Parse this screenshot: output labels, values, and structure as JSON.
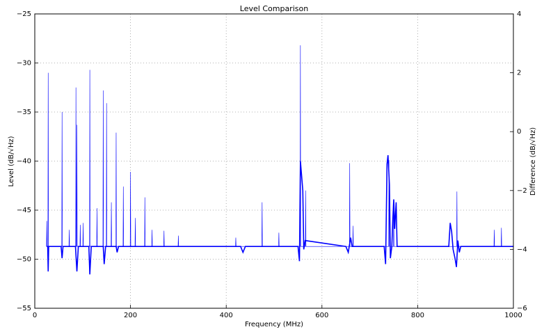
{
  "chart_data": {
    "type": "line",
    "title": "Level Comparison",
    "x_label": "Frequency (MHz)",
    "y_label": "Level (dB/√Hz)",
    "y2_label": "Difference (dB/√Hz)",
    "xlim": [
      0,
      1000
    ],
    "xticks": [
      0,
      200,
      400,
      600,
      800,
      1000
    ],
    "ylim": [
      -55,
      -25
    ],
    "yticks": [
      {
        "value": -55,
        "label": "−55"
      },
      {
        "value": -50,
        "label": "−50"
      },
      {
        "value": -45,
        "label": "−45"
      },
      {
        "value": -40,
        "label": "−40"
      },
      {
        "value": -35,
        "label": "−35"
      },
      {
        "value": -30,
        "label": "−30"
      },
      {
        "value": -25,
        "label": "−25"
      }
    ],
    "y2lim": [
      -6,
      4
    ],
    "y2ticks": [
      {
        "value": -6,
        "label": "−6"
      },
      {
        "value": -4,
        "label": "−4"
      },
      {
        "value": -2,
        "label": "−2"
      },
      0,
      2,
      4
    ],
    "grid": true,
    "series": [
      {
        "color": "#0000ff",
        "x": [
          24,
          24.4,
          25,
          25.6,
          27.4,
          28,
          28.6,
          56.4,
          57,
          57.6,
          71.4,
          72,
          72.6,
          85.4,
          86,
          86.6,
          87.4,
          88,
          88.6,
          94.4,
          95,
          95.6,
          100.4,
          101,
          101.6,
          114.4,
          115,
          115.6,
          129.4,
          130,
          130.6,
          142.4,
          143,
          143.6,
          149.4,
          150,
          150.6,
          159.4,
          160,
          160.6,
          169.4,
          170,
          170.6,
          184.4,
          185,
          185.6,
          199.4,
          200,
          200.6,
          209.4,
          210,
          210.6,
          229.4,
          230,
          230.6,
          244.4,
          245,
          245.6,
          269.4,
          270,
          270.6,
          299.4,
          300,
          300.6,
          419.4,
          420,
          420.6,
          474.4,
          475,
          475.6,
          509.4,
          510,
          510.6,
          554.4,
          555,
          555.6,
          565.4,
          566,
          566.6,
          657.4,
          658,
          658.6,
          664.4,
          665,
          665.6,
          739.4,
          740,
          740.6,
          749.4,
          750,
          750.6,
          881.4,
          882,
          882.6,
          959.4,
          960,
          960.6,
          974.4,
          975,
          975.6,
          1000
        ],
        "values": [
          -48.7,
          -48.7,
          -46.1,
          -48.7,
          -48.7,
          -31,
          -48.7,
          -48.7,
          -35,
          -48.7,
          -48.7,
          -47,
          -48.7,
          -48.7,
          -32.5,
          -48.7,
          -48.7,
          -36.3,
          -48.7,
          -48.7,
          -46.5,
          -48.7,
          -48.7,
          -46.3,
          -48.7,
          -48.7,
          -30.7,
          -48.7,
          -48.7,
          -44.8,
          -48.7,
          -48.7,
          -32.8,
          -48.7,
          -48.7,
          -34.1,
          -48.7,
          -48.7,
          -44.2,
          -48.7,
          -48.7,
          -37.1,
          -48.7,
          -48.7,
          -42.6,
          -48.7,
          -48.7,
          -41.1,
          -48.7,
          -48.7,
          -45.8,
          -48.7,
          -48.7,
          -43.7,
          -48.7,
          -48.7,
          -47,
          -48.7,
          -48.7,
          -47.1,
          -48.7,
          -48.7,
          -47.6,
          -48.7,
          -48.7,
          -47.8,
          -48.7,
          -48.7,
          -44.2,
          -48.7,
          -48.7,
          -47.3,
          -48.7,
          -48.7,
          -28.2,
          -48.7,
          -48.7,
          -43,
          -48.7,
          -48.7,
          -40.2,
          -48.7,
          -48.7,
          -46.6,
          -48.7,
          -48.7,
          -39.9,
          -48.7,
          -48.7,
          -44.5,
          -48.7,
          -48.7,
          -43.1,
          -48.7,
          -48.7,
          -47,
          -48.7,
          -48.7,
          -46.8,
          -48.7,
          -48.7
        ]
      },
      {
        "color": "#0000ff",
        "axis": "y2",
        "x": [
          25,
          27,
          28,
          29,
          55,
          57,
          59,
          85,
          88,
          91,
          113,
          115,
          118,
          143,
          145,
          148,
          170,
          172,
          175,
          430,
          435,
          440,
          550,
          553,
          555,
          557,
          560,
          562,
          565,
          650,
          655,
          660,
          663,
          730,
          733,
          736,
          738,
          741,
          743,
          746,
          748,
          750,
          752,
          755,
          757,
          865,
          868,
          871,
          874,
          878,
          881,
          884,
          887,
          890,
          1000
        ],
        "values": [
          -3.9,
          -3.9,
          -4.75,
          -3.9,
          -3.9,
          -4.3,
          -3.9,
          -3.9,
          -4.75,
          -3.9,
          -3.9,
          -4.85,
          -3.9,
          -3.9,
          -4.5,
          -3.9,
          -3.9,
          -4.1,
          -3.9,
          -3.9,
          -4.1,
          -3.9,
          -3.9,
          -4.4,
          -1,
          -1.4,
          -2,
          -4,
          -3.7,
          -3.9,
          -4.1,
          -3.6,
          -3.9,
          -3.9,
          -4.5,
          -1.1,
          -0.8,
          -1.8,
          -4.3,
          -3.9,
          -3,
          -2.3,
          -3.3,
          -2.4,
          -3.9,
          -3.9,
          -3.1,
          -3.4,
          -4,
          -4.3,
          -4.6,
          -3.7,
          -4.1,
          -3.9,
          -3.9
        ]
      }
    ]
  }
}
